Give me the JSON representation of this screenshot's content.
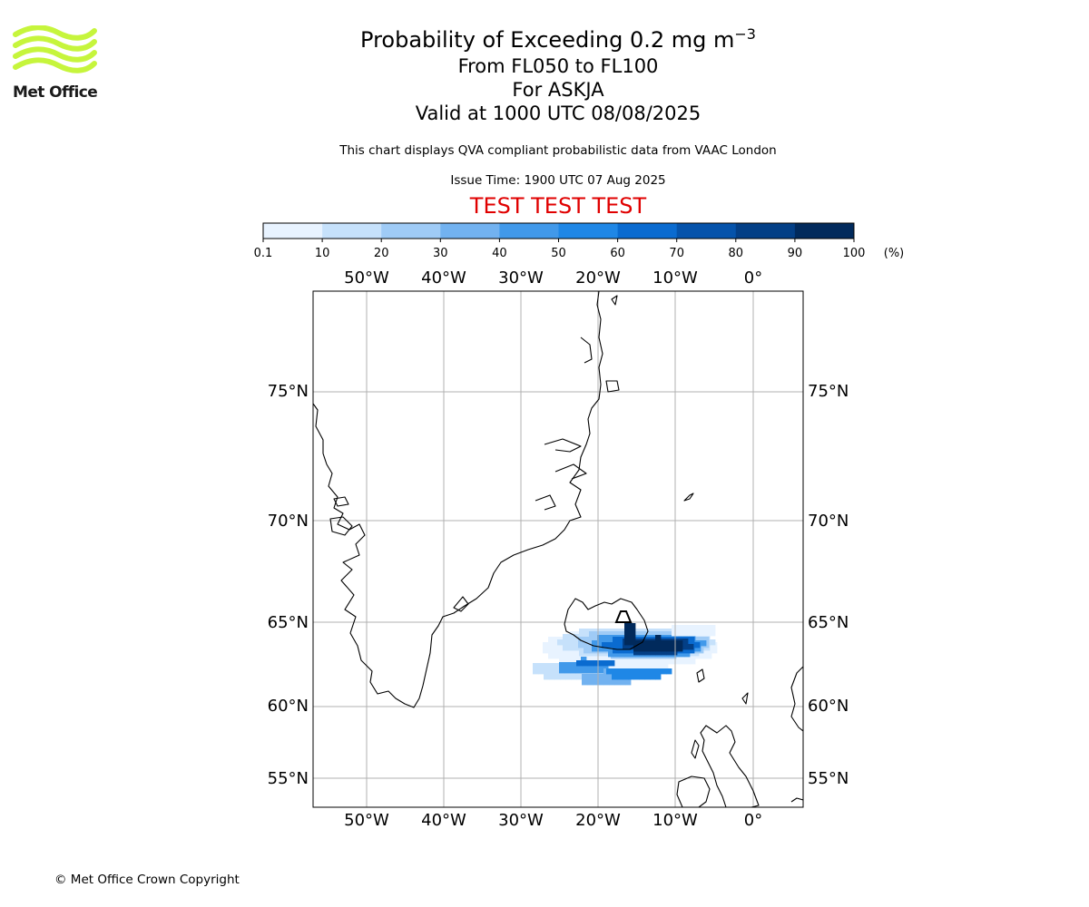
{
  "header": {
    "title_prefix": "Probability of Exceeding 0.2 mg m",
    "title_exponent": "−3",
    "line2": "From FL050 to FL100",
    "line3": "For ASKJA",
    "line4": "Valid at 1000 UTC 08/08/2025",
    "description": "This chart displays QVA compliant probabilistic data from VAAC London",
    "issue_time": "Issue Time: 1900 UTC 07 Aug 2025",
    "test_banner": "TEST TEST TEST"
  },
  "logo": {
    "text": "Met Office"
  },
  "footer": {
    "copyright": "© Met Office Crown Copyright"
  },
  "colors": {
    "test_banner": "#e00000",
    "logo_green": "#c6f53c",
    "grid": "#b0b0b0",
    "levels": [
      "#e8f3ff",
      "#c6e1fb",
      "#9fcbf6",
      "#72b2f0",
      "#4199ea",
      "#1f87e6",
      "#0a6bd0",
      "#0553ab",
      "#033f86",
      "#012a5c"
    ]
  },
  "colorbar": {
    "ticks": [
      "0.1",
      "10",
      "20",
      "30",
      "40",
      "50",
      "60",
      "70",
      "80",
      "90",
      "100"
    ],
    "unit": "(%)"
  },
  "map": {
    "lon_labels": [
      "50°W",
      "40°W",
      "30°W",
      "20°W",
      "10°W",
      "0°"
    ],
    "lat_labels": [
      "75°N",
      "70°N",
      "65°N",
      "60°N",
      "55°N"
    ]
  }
}
